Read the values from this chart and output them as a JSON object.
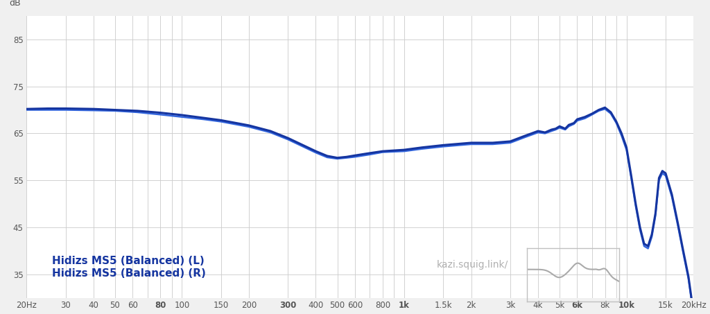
{
  "bg_color": "#f0f0f0",
  "plot_bg_color": "#ffffff",
  "grid_color": "#cccccc",
  "line_color_L": "#1535a0",
  "line_color_R": "#3366dd",
  "legend_L": "Hidizs MS5 (Balanced) (L)",
  "legend_R": "Hidizs MS5 (Balanced) (R)",
  "watermark": "kazi.squig.link/",
  "ylabel": "dB",
  "yticks": [
    35,
    45,
    55,
    65,
    75,
    85
  ],
  "ylim": [
    30,
    90
  ],
  "xtick_labels": [
    "20Hz",
    "30",
    "40",
    "50",
    "60",
    "80",
    "100",
    "150",
    "200",
    "300",
    "400",
    "500",
    "600",
    "800",
    "1k",
    "1.5k",
    "2k",
    "3k",
    "4k",
    "5k",
    "6k",
    "8k",
    "10k",
    "15k",
    "20kHz"
  ],
  "xtick_freqs": [
    20,
    30,
    40,
    50,
    60,
    80,
    100,
    150,
    200,
    300,
    400,
    500,
    600,
    800,
    1000,
    1500,
    2000,
    3000,
    4000,
    5000,
    6000,
    8000,
    10000,
    15000,
    20000
  ],
  "bold_ticks": [
    80,
    300,
    1000,
    6000,
    10000
  ]
}
